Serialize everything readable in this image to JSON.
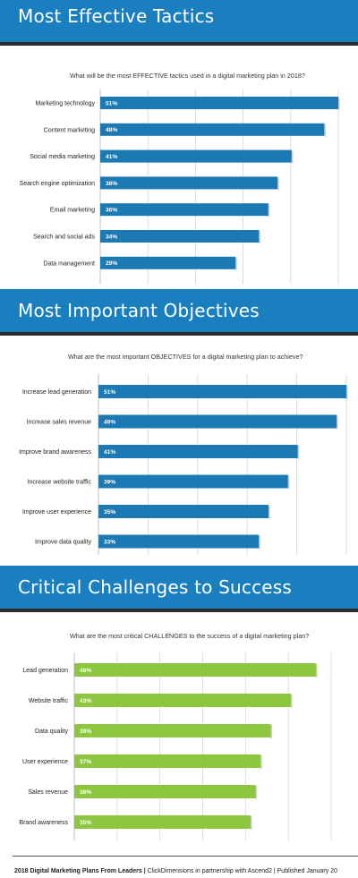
{
  "colors": {
    "banner": "#1a7fbe",
    "blue_bar": "#1b7ab3",
    "green_bar": "#8dc63f",
    "grid": "#d6d6d6"
  },
  "sections": [
    {
      "title": "Most Effective Tactics",
      "question": "What will be the most EFFECTIVE tactics used in a digital marketing plan in 2018?"
    },
    {
      "title": "Most Important Objectives",
      "question": "What are the most important OBJECTIVES for a digital marketing plan to achieve?"
    },
    {
      "title": "Critical Challenges to Success",
      "question": "What are the most critical CHALLENGES to the success of a digital marketing plan?"
    }
  ],
  "chart_data": [
    {
      "type": "bar",
      "orientation": "horizontal",
      "color": "#1b7ab3",
      "categories": [
        "Marketing technology",
        "Content marketing",
        "Social media marketing",
        "Search engine optimization",
        "Email marketing",
        "Search and social ads",
        "Data management"
      ],
      "values": [
        51,
        48,
        41,
        38,
        36,
        34,
        29
      ],
      "value_labels": [
        "51%",
        "48%",
        "41%",
        "38%",
        "36%",
        "34%",
        "29%"
      ],
      "xlim": [
        0,
        51
      ]
    },
    {
      "type": "bar",
      "orientation": "horizontal",
      "color": "#1b7ab3",
      "categories": [
        "Increase lead generation",
        "Increase sales revenue",
        "Improve brand awareness",
        "Increase website traffic",
        "Improve user experience",
        "Improve data quality"
      ],
      "values": [
        51,
        49,
        41,
        39,
        35,
        33
      ],
      "value_labels": [
        "51%",
        "49%",
        "41%",
        "39%",
        "35%",
        "33%"
      ],
      "xlim": [
        0,
        51
      ]
    },
    {
      "type": "bar",
      "orientation": "horizontal",
      "color": "#8dc63f",
      "categories": [
        "Lead generation",
        "Website traffic",
        "Data quality",
        "User experience",
        "Sales revenue",
        "Brand awareness"
      ],
      "values": [
        48,
        43,
        39,
        37,
        36,
        35
      ],
      "value_labels": [
        "48%",
        "43%",
        "39%",
        "37%",
        "36%",
        "35%"
      ],
      "xlim": [
        0,
        51
      ]
    }
  ],
  "footer": {
    "bold": "2018 Digital Marketing Plans From Leaders |",
    "text": " ClickDimensions in partnership with Ascend2 | Published January 20"
  }
}
